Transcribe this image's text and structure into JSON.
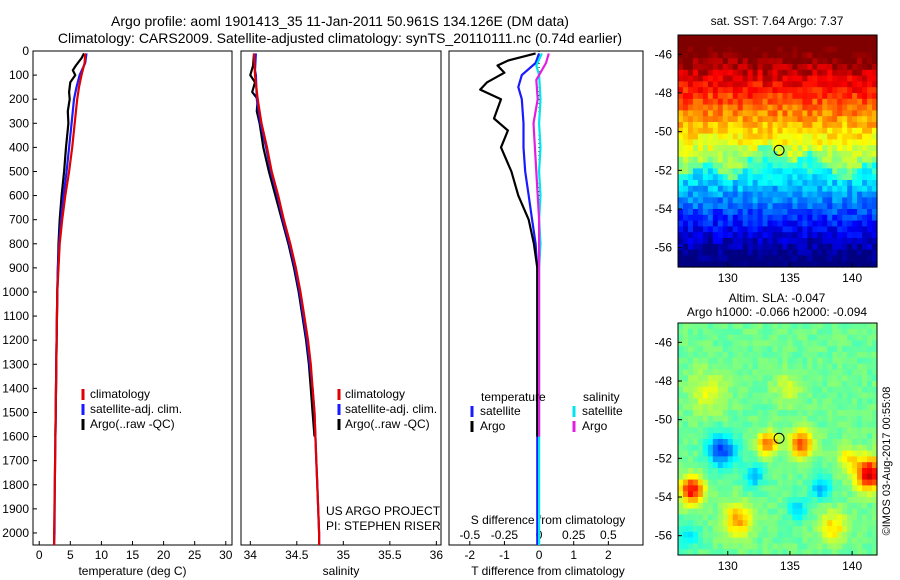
{
  "header": {
    "line1": "Argo profile: aoml 1901413_35 11-Jan-2011 50.961S 134.126E (DM data)",
    "line2": "Climatology: CARS2009. Satellite-adjusted climatology: synTS_20110111.nc (0.74d earlier)"
  },
  "credits": {
    "project": "US ARGO PROJECT",
    "pi": "PI: STEPHEN RISER",
    "stamp": "©IMOS 03-Aug-2017 00:55:08"
  },
  "colors": {
    "climatology": "#e00000",
    "satellite": "#1a1aff",
    "argo": "#000000",
    "sal_satellite": "#00e5ee",
    "sal_argo": "#e020e0",
    "marker": "#000000"
  },
  "chart_data": [
    {
      "id": "temperature",
      "type": "line",
      "xlabel": "temperature (deg C)",
      "ylabel": "",
      "xlim": [
        -1,
        31
      ],
      "ylim": [
        2050,
        0
      ],
      "xticks": [
        0,
        5,
        10,
        15,
        20,
        25,
        30
      ],
      "yticks": [
        0,
        100,
        200,
        300,
        400,
        500,
        600,
        700,
        800,
        900,
        1000,
        1100,
        1200,
        1300,
        1400,
        1500,
        1600,
        1700,
        1800,
        1900,
        2000
      ],
      "legend": [
        "climatology",
        "satellite-adj. clim.",
        "Argo(..raw -QC)"
      ],
      "series": [
        {
          "name": "climatology",
          "color": "#e00000",
          "points": [
            [
              7.4,
              10
            ],
            [
              7.3,
              50
            ],
            [
              6.8,
              100
            ],
            [
              6.4,
              150
            ],
            [
              6.1,
              200
            ],
            [
              5.7,
              300
            ],
            [
              5.3,
              400
            ],
            [
              4.8,
              500
            ],
            [
              4.2,
              600
            ],
            [
              3.7,
              700
            ],
            [
              3.3,
              800
            ],
            [
              3.1,
              900
            ],
            [
              2.9,
              1000
            ],
            [
              2.8,
              1200
            ],
            [
              2.7,
              1400
            ],
            [
              2.6,
              1600
            ],
            [
              2.5,
              1800
            ],
            [
              2.4,
              2000
            ],
            [
              2.4,
              2050
            ]
          ]
        },
        {
          "name": "satellite-adj. clim.",
          "color": "#1a1aff",
          "points": [
            [
              7.6,
              10
            ],
            [
              7.4,
              50
            ],
            [
              6.5,
              100
            ],
            [
              6.0,
              150
            ],
            [
              5.6,
              200
            ],
            [
              5.2,
              300
            ],
            [
              4.8,
              400
            ],
            [
              4.4,
              500
            ],
            [
              3.9,
              600
            ],
            [
              3.5,
              700
            ],
            [
              3.2,
              800
            ],
            [
              3.0,
              900
            ],
            [
              2.9,
              1000
            ],
            [
              2.8,
              1200
            ],
            [
              2.7,
              1400
            ],
            [
              2.6,
              1600
            ],
            [
              2.5,
              1800
            ],
            [
              2.45,
              2000
            ],
            [
              2.4,
              2050
            ]
          ]
        },
        {
          "name": "Argo(..raw -QC)",
          "color": "#000000",
          "points": [
            [
              7.2,
              10
            ],
            [
              6.8,
              30
            ],
            [
              5.9,
              60
            ],
            [
              5.4,
              80
            ],
            [
              5.8,
              100
            ],
            [
              5.0,
              130
            ],
            [
              4.8,
              170
            ],
            [
              4.9,
              200
            ],
            [
              4.6,
              250
            ],
            [
              4.7,
              300
            ],
            [
              4.3,
              400
            ],
            [
              4.0,
              500
            ],
            [
              3.6,
              600
            ],
            [
              3.3,
              700
            ],
            [
              3.1,
              800
            ],
            [
              3.0,
              900
            ],
            [
              2.9,
              1000
            ],
            [
              2.8,
              1200
            ],
            [
              2.7,
              1400
            ],
            [
              2.6,
              1600
            ]
          ]
        }
      ]
    },
    {
      "id": "salinity",
      "type": "line",
      "xlabel": "salinity",
      "ylabel": "",
      "xlim": [
        33.9,
        36.05
      ],
      "ylim": [
        2050,
        0
      ],
      "xticks": [
        34,
        34.5,
        35,
        35.5,
        36
      ],
      "xticklabels": [
        "34",
        "34.5",
        "35",
        "35.5",
        "36"
      ],
      "legend": [
        "climatology",
        "satellite-adj. clim.",
        "Argo(..raw -QC)"
      ],
      "series": [
        {
          "name": "climatology",
          "color": "#e00000",
          "points": [
            [
              34.04,
              10
            ],
            [
              34.05,
              100
            ],
            [
              34.08,
              200
            ],
            [
              34.12,
              300
            ],
            [
              34.18,
              400
            ],
            [
              34.23,
              500
            ],
            [
              34.3,
              600
            ],
            [
              34.36,
              700
            ],
            [
              34.43,
              800
            ],
            [
              34.49,
              900
            ],
            [
              34.54,
              1000
            ],
            [
              34.58,
              1100
            ],
            [
              34.62,
              1200
            ],
            [
              34.65,
              1300
            ],
            [
              34.67,
              1400
            ],
            [
              34.69,
              1500
            ],
            [
              34.7,
              1600
            ],
            [
              34.71,
              1700
            ],
            [
              34.72,
              1800
            ],
            [
              34.73,
              1900
            ],
            [
              34.74,
              2000
            ],
            [
              34.74,
              2050
            ]
          ]
        },
        {
          "name": "satellite-adj. clim.",
          "color": "#1a1aff",
          "points": [
            [
              34.06,
              10
            ],
            [
              34.05,
              80
            ],
            [
              34.06,
              100
            ],
            [
              34.07,
              200
            ],
            [
              34.11,
              300
            ],
            [
              34.17,
              400
            ],
            [
              34.22,
              500
            ],
            [
              34.29,
              600
            ],
            [
              34.35,
              700
            ],
            [
              34.42,
              800
            ],
            [
              34.48,
              900
            ],
            [
              34.53,
              1000
            ],
            [
              34.57,
              1100
            ],
            [
              34.61,
              1200
            ],
            [
              34.64,
              1300
            ],
            [
              34.67,
              1400
            ],
            [
              34.69,
              1500
            ],
            [
              34.7,
              1600
            ],
            [
              34.71,
              1700
            ],
            [
              34.72,
              1800
            ],
            [
              34.73,
              1900
            ],
            [
              34.74,
              2000
            ],
            [
              34.74,
              2050
            ]
          ]
        },
        {
          "name": "Argo(..raw -QC)",
          "color": "#000000",
          "points": [
            [
              34.04,
              10
            ],
            [
              34.03,
              60
            ],
            [
              34.0,
              100
            ],
            [
              34.05,
              130
            ],
            [
              34.02,
              170
            ],
            [
              34.08,
              200
            ],
            [
              34.07,
              250
            ],
            [
              34.1,
              300
            ],
            [
              34.12,
              350
            ],
            [
              34.14,
              400
            ],
            [
              34.2,
              500
            ],
            [
              34.27,
              600
            ],
            [
              34.34,
              700
            ],
            [
              34.41,
              800
            ],
            [
              34.47,
              900
            ],
            [
              34.52,
              1000
            ],
            [
              34.56,
              1100
            ],
            [
              34.6,
              1200
            ],
            [
              34.63,
              1300
            ],
            [
              34.65,
              1400
            ],
            [
              34.67,
              1500
            ],
            [
              34.69,
              1600
            ]
          ]
        }
      ]
    },
    {
      "id": "differences",
      "type": "line",
      "xlabel": "T difference from climatology",
      "top_label": "S difference from climatology",
      "xlim": [
        -2.6,
        3.0
      ],
      "ylim": [
        2050,
        0
      ],
      "xticks": [
        -2,
        -1,
        0,
        1,
        2
      ],
      "xticklabels": [
        "-2",
        "-1",
        "0",
        "1",
        "2"
      ],
      "sticks": [
        -0.5,
        -0.25,
        0,
        0.25,
        0.5
      ],
      "sticklabels": [
        "-0.5",
        "-0.25",
        "0",
        "0.25",
        "0.5"
      ],
      "s_scale": 4,
      "legend_headers": [
        "temperature",
        "salinity"
      ],
      "legend": [
        "satellite",
        "Argo",
        "satellite",
        "Argo"
      ],
      "series": [
        {
          "name": "temperature satellite",
          "color": "#1a1aff",
          "points": [
            [
              0.0,
              10
            ],
            [
              -0.1,
              50
            ],
            [
              -0.5,
              100
            ],
            [
              -0.6,
              150
            ],
            [
              -0.5,
              200
            ],
            [
              -0.45,
              300
            ],
            [
              -0.45,
              400
            ],
            [
              -0.4,
              500
            ],
            [
              -0.3,
              600
            ],
            [
              -0.2,
              700
            ],
            [
              -0.1,
              800
            ],
            [
              -0.05,
              900
            ],
            [
              -0.05,
              1000
            ],
            [
              -0.05,
              1200
            ],
            [
              -0.05,
              1400
            ],
            [
              -0.05,
              1600
            ],
            [
              -0.05,
              1800
            ],
            [
              -0.05,
              2000
            ],
            [
              -0.05,
              2050
            ]
          ]
        },
        {
          "name": "temperature Argo",
          "color": "#000000",
          "points": [
            [
              -0.1,
              10
            ],
            [
              -0.9,
              40
            ],
            [
              -1.2,
              60
            ],
            [
              -1.0,
              90
            ],
            [
              -1.5,
              130
            ],
            [
              -1.7,
              160
            ],
            [
              -1.1,
              200
            ],
            [
              -1.3,
              280
            ],
            [
              -0.9,
              330
            ],
            [
              -1.1,
              400
            ],
            [
              -0.8,
              500
            ],
            [
              -0.6,
              600
            ],
            [
              -0.3,
              700
            ],
            [
              -0.15,
              800
            ],
            [
              -0.05,
              900
            ],
            [
              -0.05,
              1000
            ],
            [
              -0.05,
              1200
            ],
            [
              -0.05,
              1400
            ],
            [
              -0.05,
              1600
            ]
          ]
        },
        {
          "name": "salinity satellite",
          "color": "#00e5ee",
          "points": [
            [
              0.02,
              10
            ],
            [
              -0.02,
              60
            ],
            [
              0.0,
              100
            ],
            [
              0.01,
              200
            ],
            [
              0.0,
              300
            ],
            [
              0.01,
              400
            ],
            [
              0.0,
              500
            ],
            [
              0.01,
              600
            ],
            [
              0.0,
              700
            ],
            [
              0.01,
              800
            ],
            [
              0.0,
              900
            ],
            [
              0.0,
              1000
            ],
            [
              0.0,
              1200
            ],
            [
              0.0,
              1400
            ],
            [
              0.0,
              1600
            ],
            [
              0.0,
              1800
            ],
            [
              0.0,
              2000
            ],
            [
              0.0,
              2050
            ]
          ]
        },
        {
          "name": "salinity Argo",
          "color": "#e020e0",
          "points": [
            [
              0.07,
              10
            ],
            [
              0.05,
              50
            ],
            [
              0.02,
              80
            ],
            [
              -0.02,
              120
            ],
            [
              -0.01,
              200
            ],
            [
              -0.04,
              300
            ],
            [
              -0.03,
              400
            ],
            [
              -0.02,
              500
            ],
            [
              -0.01,
              600
            ],
            [
              0.0,
              700
            ],
            [
              0.0,
              800
            ],
            [
              0.0,
              900
            ],
            [
              0.0,
              1000
            ],
            [
              0.0,
              1200
            ],
            [
              0.0,
              1400
            ],
            [
              0.0,
              1600
            ]
          ]
        }
      ]
    },
    {
      "id": "sst_map",
      "type": "heatmap",
      "title": "sat. SST: 7.64  Argo: 7.37",
      "xlim": [
        126,
        142
      ],
      "ylim": [
        -57,
        -45
      ],
      "xticks": [
        130,
        135,
        140
      ],
      "yticks": [
        -46,
        -48,
        -50,
        -52,
        -54,
        -56
      ],
      "marker": [
        134.126,
        -50.961
      ],
      "value_range_degC": [
        3,
        12
      ]
    },
    {
      "id": "sla_map",
      "type": "heatmap",
      "title": "Altim. SLA: -0.047",
      "subtitle": "Argo h1000: -0.066 h2000: -0.094",
      "xlim": [
        126,
        142
      ],
      "ylim": [
        -57,
        -45
      ],
      "xticks": [
        130,
        135,
        140
      ],
      "yticks": [
        -46,
        -48,
        -50,
        -52,
        -54,
        -56
      ],
      "marker": [
        134.126,
        -50.961
      ],
      "value_range_m": [
        -0.3,
        0.3
      ]
    }
  ]
}
